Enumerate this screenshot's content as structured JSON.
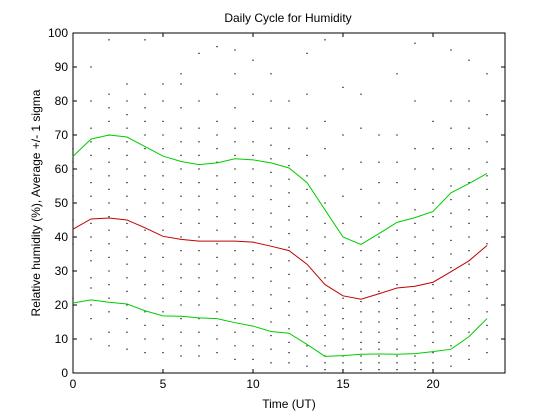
{
  "chart_data": {
    "type": "line",
    "title": "Daily Cycle for Humidity",
    "xlabel": "Time (UT)",
    "ylabel": "Relative humidity (%), Average +/- 1 sigma",
    "xlim": [
      0,
      24
    ],
    "ylim": [
      0,
      100
    ],
    "xticks": [
      0,
      5,
      10,
      15,
      20
    ],
    "yticks": [
      0,
      10,
      20,
      30,
      40,
      50,
      60,
      70,
      80,
      90,
      100
    ],
    "grid": false,
    "legend": "none",
    "x": [
      0,
      1,
      2,
      3,
      4,
      5,
      6,
      7,
      8,
      9,
      10,
      11,
      12,
      13,
      14,
      15,
      16,
      17,
      18,
      19,
      20,
      21,
      22,
      23
    ],
    "series": [
      {
        "role": "mean",
        "color": "#c00000",
        "values": [
          42.3,
          45.3,
          45.6,
          45.0,
          42.7,
          40.2,
          39.3,
          38.8,
          38.8,
          38.8,
          38.5,
          37.3,
          36.0,
          32.0,
          26.0,
          22.7,
          21.7,
          23.3,
          25.0,
          25.5,
          26.7,
          29.8,
          33.0,
          37.5
        ]
      },
      {
        "role": "mean-plus-1-sigma",
        "color": "#00cc00",
        "values": [
          63.7,
          68.8,
          70.0,
          69.4,
          66.6,
          63.8,
          62.2,
          61.3,
          61.8,
          63.0,
          62.7,
          61.8,
          60.3,
          56.0,
          48.0,
          40.0,
          37.8,
          41.0,
          44.3,
          45.7,
          47.5,
          53.0,
          55.7,
          58.7
        ]
      },
      {
        "role": "mean-minus-1-sigma",
        "color": "#00cc00",
        "values": [
          20.6,
          21.5,
          20.8,
          20.3,
          18.3,
          16.8,
          16.7,
          16.2,
          16.0,
          14.8,
          13.8,
          12.2,
          11.7,
          8.4,
          4.9,
          5.1,
          5.5,
          5.6,
          5.5,
          5.7,
          6.3,
          7.0,
          10.7,
          16.0
        ]
      }
    ],
    "scatter": {
      "color": "#000000",
      "note_hidden": false,
      "points_per_hour": [
        [
          0,
          [
            22,
            30,
            38,
            45,
            52,
            58,
            62,
            66
          ]
        ],
        [
          1,
          [
            10,
            16,
            20,
            25,
            28,
            33,
            36,
            40,
            44,
            48,
            52,
            56,
            60,
            64,
            68,
            72,
            80,
            90
          ]
        ],
        [
          2,
          [
            8,
            12,
            18,
            22,
            26,
            30,
            34,
            38,
            42,
            46,
            50,
            54,
            58,
            62,
            66,
            70,
            74,
            78,
            82,
            98
          ]
        ],
        [
          3,
          [
            7,
            12,
            16,
            20,
            24,
            28,
            32,
            36,
            40,
            44,
            48,
            52,
            56,
            60,
            64,
            68,
            72,
            76,
            80,
            85
          ]
        ],
        [
          4,
          [
            6,
            10,
            14,
            18,
            22,
            26,
            30,
            34,
            38,
            42,
            46,
            50,
            54,
            58,
            62,
            66,
            70,
            74,
            78,
            82,
            98
          ]
        ],
        [
          5,
          [
            6,
            10,
            14,
            18,
            22,
            26,
            30,
            34,
            38,
            42,
            46,
            50,
            54,
            58,
            62,
            66,
            70,
            74,
            80,
            85
          ]
        ],
        [
          6,
          [
            5,
            8,
            12,
            16,
            20,
            24,
            28,
            32,
            36,
            40,
            44,
            48,
            52,
            56,
            60,
            64,
            68,
            72,
            78,
            85,
            88
          ]
        ],
        [
          7,
          [
            5,
            8,
            12,
            16,
            20,
            24,
            28,
            32,
            36,
            40,
            44,
            48,
            52,
            56,
            60,
            64,
            68,
            72,
            80,
            94
          ]
        ],
        [
          8,
          [
            6,
            10,
            14,
            18,
            22,
            26,
            30,
            34,
            38,
            42,
            46,
            50,
            54,
            58,
            62,
            66,
            70,
            74,
            82,
            96
          ]
        ],
        [
          9,
          [
            4,
            8,
            12,
            16,
            20,
            24,
            28,
            32,
            36,
            40,
            44,
            48,
            52,
            56,
            60,
            64,
            68,
            72,
            78,
            88,
            95
          ]
        ],
        [
          10,
          [
            4,
            8,
            12,
            16,
            20,
            24,
            28,
            32,
            36,
            40,
            44,
            48,
            52,
            56,
            60,
            64,
            68,
            74,
            82,
            92
          ]
        ],
        [
          11,
          [
            3,
            7,
            11,
            15,
            19,
            23,
            27,
            31,
            35,
            39,
            43,
            47,
            51,
            55,
            59,
            63,
            67,
            72,
            80,
            88
          ]
        ],
        [
          12,
          [
            3,
            6,
            9,
            13,
            17,
            21,
            25,
            29,
            33,
            37,
            41,
            45,
            49,
            53,
            57,
            61,
            66,
            72,
            80
          ]
        ],
        [
          13,
          [
            2,
            5,
            8,
            11,
            14,
            18,
            22,
            26,
            30,
            34,
            38,
            42,
            46,
            50,
            54,
            58,
            64,
            72,
            82,
            94
          ]
        ],
        [
          14,
          [
            1,
            3,
            5,
            8,
            11,
            14,
            17,
            20,
            24,
            28,
            32,
            36,
            40,
            44,
            50,
            58,
            66,
            74,
            98
          ]
        ],
        [
          15,
          [
            1,
            3,
            5,
            7,
            10,
            13,
            16,
            19,
            22,
            26,
            30,
            34,
            38,
            44,
            52,
            60,
            70,
            84
          ]
        ],
        [
          16,
          [
            1,
            3,
            5,
            7,
            9,
            12,
            15,
            18,
            21,
            24,
            28,
            32,
            36,
            40,
            46,
            54,
            62,
            72,
            82
          ]
        ],
        [
          17,
          [
            1,
            3,
            5,
            7,
            9,
            12,
            15,
            18,
            21,
            24,
            28,
            32,
            36,
            40,
            44,
            50,
            56,
            62,
            70
          ]
        ],
        [
          18,
          [
            1,
            3,
            5,
            7,
            10,
            13,
            16,
            19,
            22,
            26,
            30,
            34,
            38,
            42,
            46,
            50,
            56,
            62,
            70,
            88
          ]
        ],
        [
          19,
          [
            1,
            3,
            5,
            8,
            11,
            14,
            17,
            20,
            24,
            28,
            32,
            36,
            40,
            44,
            48,
            54,
            60,
            66,
            80,
            97
          ]
        ],
        [
          20,
          [
            1,
            3,
            6,
            9,
            12,
            15,
            18,
            22,
            26,
            30,
            34,
            38,
            42,
            46,
            50,
            54,
            60,
            66,
            74
          ]
        ],
        [
          21,
          [
            2,
            5,
            8,
            11,
            15,
            19,
            23,
            27,
            31,
            35,
            39,
            43,
            47,
            51,
            55,
            60,
            66,
            72,
            80,
            95
          ]
        ],
        [
          22,
          [
            4,
            8,
            12,
            16,
            20,
            24,
            28,
            32,
            36,
            40,
            44,
            48,
            52,
            56,
            60,
            66,
            72,
            80,
            92
          ]
        ],
        [
          23,
          [
            6,
            10,
            14,
            18,
            22,
            26,
            30,
            34,
            38,
            42,
            46,
            50,
            54,
            58,
            62,
            68,
            76,
            88
          ]
        ]
      ]
    }
  }
}
